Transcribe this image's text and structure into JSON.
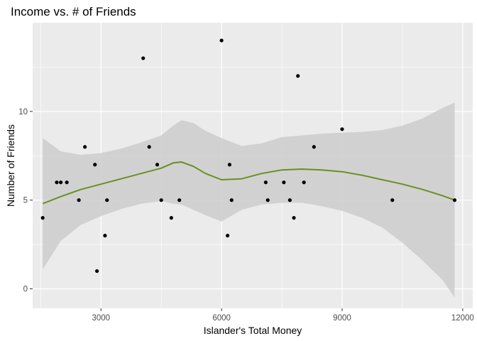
{
  "chart_data": {
    "type": "scatter",
    "title": "Income vs. # of Friends",
    "xlabel": "Islander's Total Money",
    "ylabel": "Number of Friends",
    "xlim": [
      1300,
      12250
    ],
    "ylim": [
      -1.1,
      15
    ],
    "x_ticks": [
      3000,
      6000,
      9000,
      12000
    ],
    "x_tick_labels": [
      "3000",
      "6000",
      "9000",
      "12000"
    ],
    "y_ticks": [
      0,
      5,
      10
    ],
    "y_tick_labels": [
      "0",
      "5",
      "10"
    ],
    "x_minor_ticks": [
      1500,
      4500,
      7500,
      10500
    ],
    "y_minor_ticks": [
      2.5,
      7.5,
      12.5
    ],
    "grid": true,
    "colors": {
      "panel": "#ebebeb",
      "grid": "#ffffff",
      "point": "#000000",
      "smooth_line": "#6b8e23",
      "band": "#cccccc"
    },
    "points": [
      {
        "x": 1550,
        "y": 4
      },
      {
        "x": 1900,
        "y": 6
      },
      {
        "x": 2000,
        "y": 6
      },
      {
        "x": 2150,
        "y": 6
      },
      {
        "x": 2450,
        "y": 5
      },
      {
        "x": 2600,
        "y": 8
      },
      {
        "x": 2850,
        "y": 7
      },
      {
        "x": 2900,
        "y": 1
      },
      {
        "x": 3100,
        "y": 3
      },
      {
        "x": 3150,
        "y": 5
      },
      {
        "x": 4050,
        "y": 13
      },
      {
        "x": 4200,
        "y": 8
      },
      {
        "x": 4400,
        "y": 7
      },
      {
        "x": 4500,
        "y": 5
      },
      {
        "x": 4750,
        "y": 4
      },
      {
        "x": 4950,
        "y": 5
      },
      {
        "x": 6000,
        "y": 14
      },
      {
        "x": 6150,
        "y": 3
      },
      {
        "x": 6200,
        "y": 7
      },
      {
        "x": 6250,
        "y": 5
      },
      {
        "x": 7100,
        "y": 6
      },
      {
        "x": 7150,
        "y": 5
      },
      {
        "x": 7550,
        "y": 6
      },
      {
        "x": 7700,
        "y": 5
      },
      {
        "x": 7800,
        "y": 4
      },
      {
        "x": 7900,
        "y": 12
      },
      {
        "x": 8050,
        "y": 6
      },
      {
        "x": 8300,
        "y": 8
      },
      {
        "x": 9000,
        "y": 9
      },
      {
        "x": 10250,
        "y": 5
      },
      {
        "x": 11800,
        "y": 5
      }
    ],
    "smooth": {
      "method": "loess",
      "x": [
        1550,
        2000,
        2500,
        3000,
        3500,
        4000,
        4500,
        4800,
        5000,
        5300,
        5600,
        6000,
        6500,
        7000,
        7500,
        8000,
        8500,
        9000,
        9500,
        10000,
        10500,
        11000,
        11500,
        11800
      ],
      "y": [
        4.8,
        5.2,
        5.6,
        5.9,
        6.2,
        6.5,
        6.8,
        7.1,
        7.15,
        6.9,
        6.5,
        6.15,
        6.2,
        6.5,
        6.7,
        6.75,
        6.7,
        6.6,
        6.4,
        6.15,
        5.9,
        5.6,
        5.25,
        5.0
      ],
      "lower": [
        1.1,
        2.7,
        3.6,
        4.1,
        4.5,
        4.8,
        4.95,
        4.8,
        4.75,
        4.45,
        4.15,
        3.8,
        4.45,
        4.75,
        4.85,
        4.85,
        4.65,
        4.4,
        4.0,
        3.45,
        2.6,
        1.6,
        0.5,
        -0.5
      ],
      "upper": [
        8.5,
        7.75,
        7.55,
        7.65,
        7.9,
        8.25,
        8.65,
        9.2,
        9.5,
        9.35,
        8.9,
        8.5,
        8.05,
        8.2,
        8.55,
        8.65,
        8.75,
        8.8,
        8.85,
        8.95,
        9.2,
        9.6,
        10.2,
        10.5
      ]
    }
  }
}
